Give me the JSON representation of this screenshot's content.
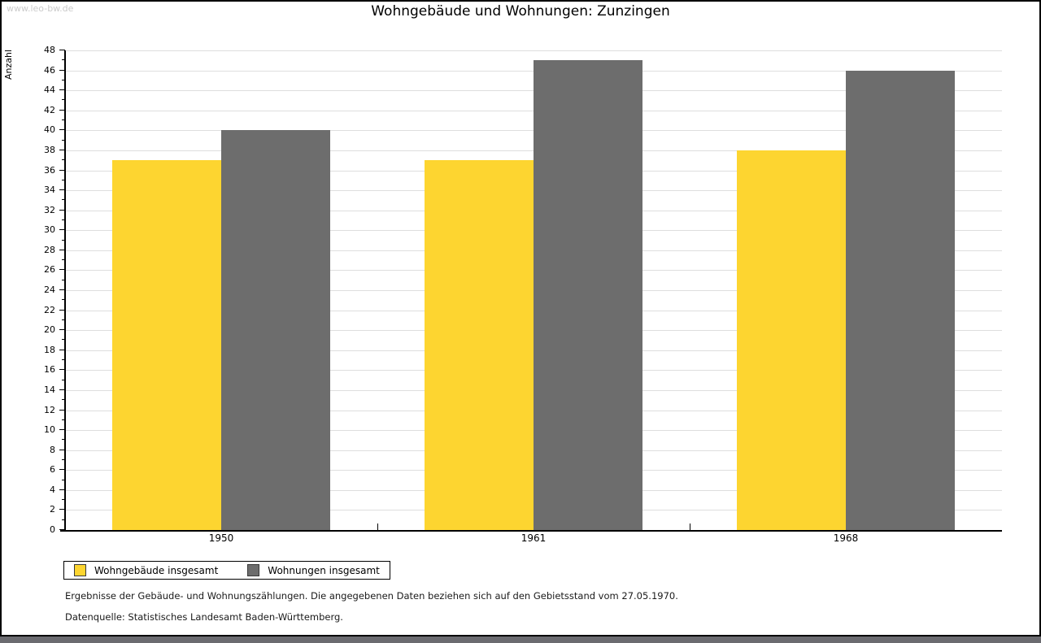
{
  "watermark": "www.leo-bw.de",
  "header": {
    "title": "Wohngebäude und Wohnungen: Zunzingen"
  },
  "chart_data": {
    "type": "bar",
    "title": "Wohngebäude und Wohnungen: Zunzingen",
    "xlabel": "",
    "ylabel": "Anzahl",
    "categories": [
      "1950",
      "1961",
      "1968"
    ],
    "series": [
      {
        "name": "Wohngebäude insgesamt",
        "color": "#fdd530",
        "values": [
          37,
          37,
          38
        ]
      },
      {
        "name": "Wohnungen insgesamt",
        "color": "#6d6d6d",
        "values": [
          40,
          47,
          46
        ]
      }
    ],
    "ylim": [
      0,
      48
    ],
    "ytick_step": 2,
    "yminortick_step": 1,
    "grid": true,
    "gridline_color": "#dedede",
    "legend_position": "bottom-left"
  },
  "legend": {
    "items": [
      {
        "label": "Wohngebäude insgesamt",
        "color": "#fdd530"
      },
      {
        "label": "Wohnungen insgesamt",
        "color": "#6d6d6d"
      }
    ]
  },
  "footnotes": {
    "line1": "Ergebnisse der Gebäude- und Wohnungszählungen. Die angegebenen Daten beziehen sich auf den Gebietsstand vom 27.05.1970.",
    "line2": "Datenquelle: Statistisches Landesamt Baden-Württemberg."
  }
}
